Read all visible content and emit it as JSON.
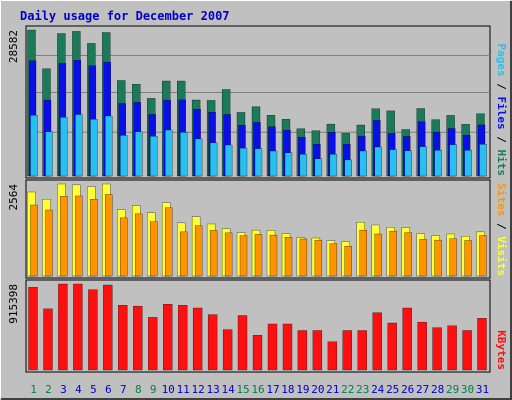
{
  "chart_data": [
    {
      "type": "bar",
      "title": "Daily usage for December 2007",
      "panel": "hits-files-pages",
      "ymax_label": "28582",
      "ylim": [
        0,
        28582
      ],
      "grid": true,
      "legend": [
        "Pages",
        "Files",
        "Hits"
      ],
      "categories": [
        "1",
        "2",
        "3",
        "4",
        "5",
        "6",
        "7",
        "8",
        "9",
        "10",
        "11",
        "12",
        "13",
        "14",
        "15",
        "16",
        "17",
        "18",
        "19",
        "20",
        "21",
        "22",
        "23",
        "24",
        "25",
        "26",
        "27",
        "28",
        "29",
        "30",
        "31"
      ],
      "series": [
        {
          "name": "Hits",
          "values": [
            28582,
            21010,
            27900,
            28300,
            25950,
            28100,
            18700,
            17980,
            15200,
            18600,
            18600,
            14870,
            14800,
            16940,
            12460,
            13560,
            11910,
            11120,
            9250,
            8850,
            10160,
            8350,
            9990,
            13150,
            12740,
            9110,
            13220,
            11040,
            11860,
            10120,
            12200
          ]
        },
        {
          "name": "Files",
          "values": [
            22550,
            14850,
            22040,
            22650,
            21580,
            22300,
            14200,
            14400,
            12050,
            14850,
            14900,
            13100,
            12490,
            12040,
            9970,
            10500,
            9640,
            8980,
            7600,
            6240,
            8550,
            6240,
            7820,
            10900,
            8340,
            7730,
            10620,
            8600,
            9300,
            8000,
            10000
          ]
        },
        {
          "name": "Pages",
          "values": [
            11900,
            8650,
            11480,
            12040,
            11100,
            11740,
            7940,
            8670,
            7770,
            9000,
            8550,
            7260,
            6500,
            6070,
            5470,
            5360,
            4900,
            4550,
            4250,
            3360,
            4250,
            3150,
            4890,
            5670,
            5160,
            4950,
            5750,
            5040,
            6130,
            5040,
            6200
          ]
        }
      ]
    },
    {
      "type": "bar",
      "panel": "sites-visits",
      "ymax_label": "2564",
      "ylim": [
        0,
        2564
      ],
      "legend": [
        "Sites",
        "Visits"
      ],
      "categories": [
        "1",
        "2",
        "3",
        "4",
        "5",
        "6",
        "7",
        "8",
        "9",
        "10",
        "11",
        "12",
        "13",
        "14",
        "15",
        "16",
        "17",
        "18",
        "19",
        "20",
        "21",
        "22",
        "23",
        "24",
        "25",
        "26",
        "27",
        "28",
        "29",
        "30",
        "31"
      ],
      "series": [
        {
          "name": "Visits",
          "values": [
            2340,
            2140,
            2564,
            2540,
            2490,
            2564,
            1850,
            1960,
            1760,
            2040,
            1480,
            1650,
            1450,
            1320,
            1210,
            1280,
            1270,
            1180,
            1070,
            1060,
            980,
            960,
            1500,
            1420,
            1360,
            1350,
            1180,
            1120,
            1170,
            1110,
            1230
          ]
        },
        {
          "name": "Sites",
          "values": [
            1980,
            1840,
            2220,
            2230,
            2140,
            2270,
            1620,
            1730,
            1510,
            1900,
            1230,
            1400,
            1270,
            1200,
            1120,
            1160,
            1140,
            1080,
            1030,
            1000,
            900,
            830,
            1280,
            1170,
            1250,
            1210,
            1020,
            1000,
            1040,
            990,
            1130
          ]
        }
      ]
    },
    {
      "type": "bar",
      "panel": "kbytes",
      "ymax_label": "915398",
      "ylim": [
        0,
        915398
      ],
      "legend": [
        "KBytes"
      ],
      "categories": [
        "1",
        "2",
        "3",
        "4",
        "5",
        "6",
        "7",
        "8",
        "9",
        "10",
        "11",
        "12",
        "13",
        "14",
        "15",
        "16",
        "17",
        "18",
        "19",
        "20",
        "21",
        "22",
        "23",
        "24",
        "25",
        "26",
        "27",
        "28",
        "29",
        "30",
        "31"
      ],
      "series": [
        {
          "name": "KBytes",
          "values": [
            880000,
            650000,
            915398,
            915398,
            855000,
            905000,
            690000,
            680000,
            560000,
            700000,
            690000,
            660000,
            590000,
            430000,
            580000,
            370000,
            490000,
            490000,
            420000,
            420000,
            300000,
            420000,
            420000,
            610000,
            500000,
            660000,
            510000,
            450000,
            470000,
            420000,
            550000
          ]
        }
      ]
    }
  ],
  "colors": {
    "background": "#c0c0c0",
    "plot_bg": "#c0c0c0",
    "title": "#0000cc",
    "hits": "#1a7a5a",
    "files": "#0a0ee8",
    "pages": "#28c0f0",
    "visits": "#ffff33",
    "sites": "#ff9400",
    "kbytes": "#ff1010",
    "weekend_label": "#00804a",
    "weekday_label": "#0000cc"
  },
  "weekend_days": [
    "1",
    "2",
    "8",
    "9",
    "15",
    "16",
    "22",
    "23",
    "29",
    "30"
  ]
}
